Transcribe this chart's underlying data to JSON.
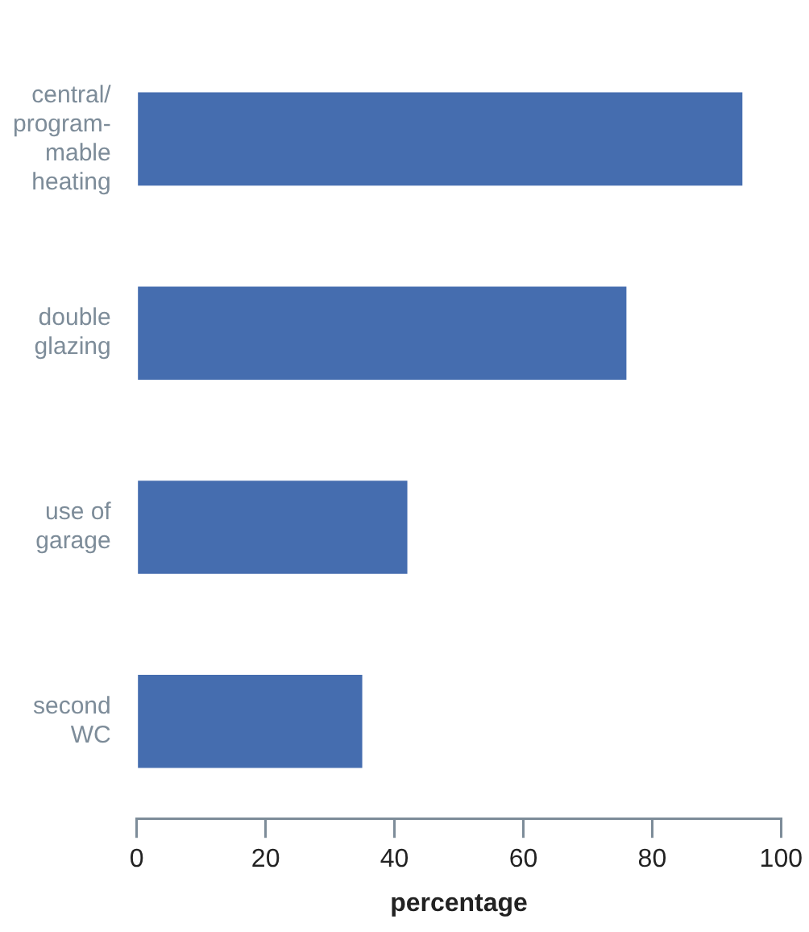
{
  "chart_data": {
    "type": "bar",
    "orientation": "horizontal",
    "xlabel": "percentage",
    "categories": [
      "central/\nprogram-\nmable\nheating",
      "double\nglazing",
      "use of\ngarage",
      "second\nWC"
    ],
    "values": [
      94,
      76,
      42,
      35
    ],
    "color": "#456daf",
    "xlim": [
      0,
      100
    ],
    "xticks": [
      0,
      20,
      40,
      60,
      80,
      100
    ],
    "grid": false,
    "legend": false
  }
}
